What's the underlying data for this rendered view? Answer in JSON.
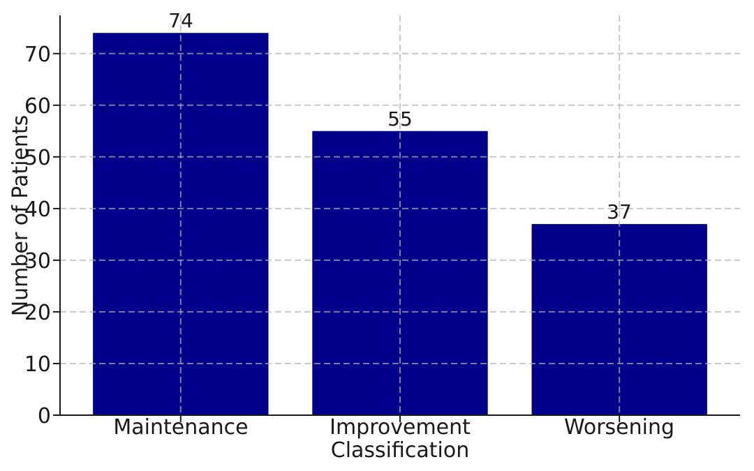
{
  "chart_data": {
    "type": "bar",
    "title": "",
    "categories": [
      "Maintenance",
      "Improvement",
      "Worsening"
    ],
    "values": [
      74,
      55,
      37
    ],
    "value_labels": [
      "74",
      "55",
      "37"
    ],
    "xlabel": "Classification",
    "ylabel": "Number of Patients",
    "yticks": [
      0,
      10,
      20,
      30,
      40,
      50,
      60,
      70
    ],
    "ylim": [
      0,
      77.4
    ],
    "bar_color": "#00008B",
    "grid": "dashed, horizontal and vertical, drawn above bars",
    "grid_color": "#b0b0b0",
    "axis_color": "#1a1a1a",
    "legend": null
  }
}
